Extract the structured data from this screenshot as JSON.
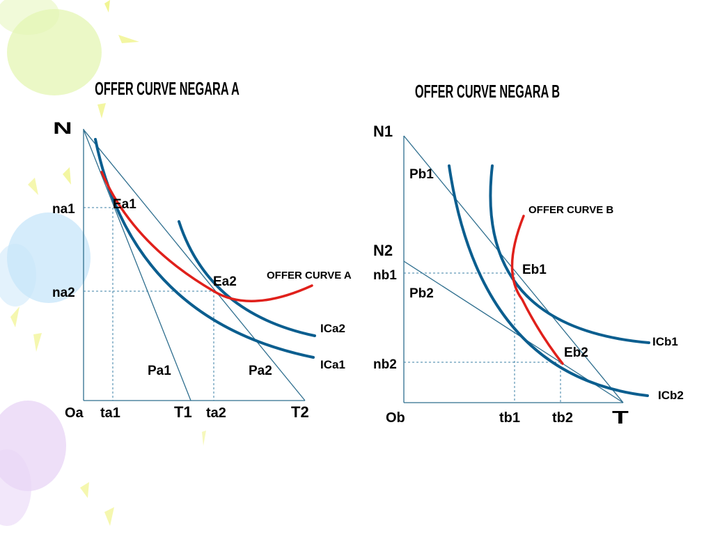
{
  "colors": {
    "axis": "#2e6e8e",
    "guide": "#3a7fa6",
    "indifference": "#0b5e8f",
    "offer": "#e0201b",
    "text": "#000000",
    "decor_green": "#e4f5b3",
    "decor_blue": "#c7e6fa",
    "decor_purple": "#ead7f6",
    "decor_yellow": "#eef27a"
  },
  "panel_a": {
    "title": "OFFER CURVE NEGARA A",
    "y_axis": "N",
    "origin": "Oa",
    "ticks_y": [
      "na1",
      "na2"
    ],
    "ticks_x": [
      "ta1",
      "T1",
      "ta2",
      "T2"
    ],
    "points": [
      "Ea1",
      "Ea2"
    ],
    "price_lines": [
      "Pa1",
      "Pa2"
    ],
    "offer_curve": "OFFER CURVE  A",
    "indifference_curves": [
      "ICa2",
      "ICa1"
    ]
  },
  "panel_b": {
    "title": "OFFER CURVE NEGARA B",
    "y_axis_top": "N1",
    "y_axis_mid": "N2",
    "origin": "Ob",
    "ticks_y": [
      "nb1",
      "nb2"
    ],
    "ticks_x": [
      "tb1",
      "tb2"
    ],
    "x_axis": "T",
    "points": [
      "Eb1",
      "Eb2"
    ],
    "price_lines": [
      "Pb1",
      "Pb2"
    ],
    "offer_curve": "OFFER CURVE  B",
    "indifference_curves": [
      "ICb1",
      "ICb2"
    ]
  }
}
